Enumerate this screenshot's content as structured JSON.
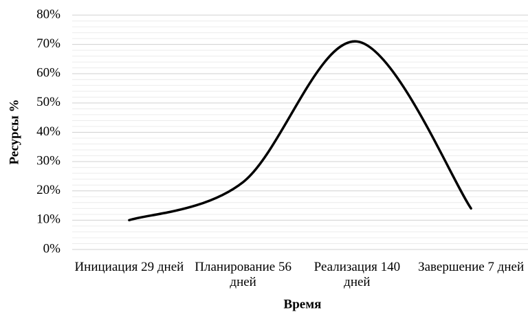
{
  "chart_data": {
    "type": "line",
    "x_label": "Время",
    "y_label": "Ресурсы %",
    "categories": [
      "Инициация 29 дней",
      "Планирование 56 дней",
      "Реализация 140 дней",
      "Завершение 7 дней"
    ],
    "series": [
      {
        "name": "Ресурсы",
        "color": "#000000",
        "values": [
          10,
          23,
          71,
          14
        ]
      }
    ],
    "ylim": [
      0,
      80
    ],
    "yticks": [
      {
        "value": 0,
        "label": "0%"
      },
      {
        "value": 10,
        "label": "10%"
      },
      {
        "value": 20,
        "label": "20%"
      },
      {
        "value": 30,
        "label": "30%"
      },
      {
        "value": 40,
        "label": "40%"
      },
      {
        "value": 50,
        "label": "50%"
      },
      {
        "value": 60,
        "label": "60%"
      },
      {
        "value": 70,
        "label": "70%"
      },
      {
        "value": 80,
        "label": "80%"
      }
    ],
    "yminorticks": [
      2,
      4,
      6,
      8,
      12,
      14,
      16,
      18,
      22,
      24,
      26,
      28,
      32,
      34,
      36,
      38,
      42,
      44,
      46,
      48,
      52,
      54,
      56,
      58,
      62,
      64,
      66,
      68,
      72,
      74,
      76,
      78
    ],
    "grid": true,
    "smooth": true
  }
}
